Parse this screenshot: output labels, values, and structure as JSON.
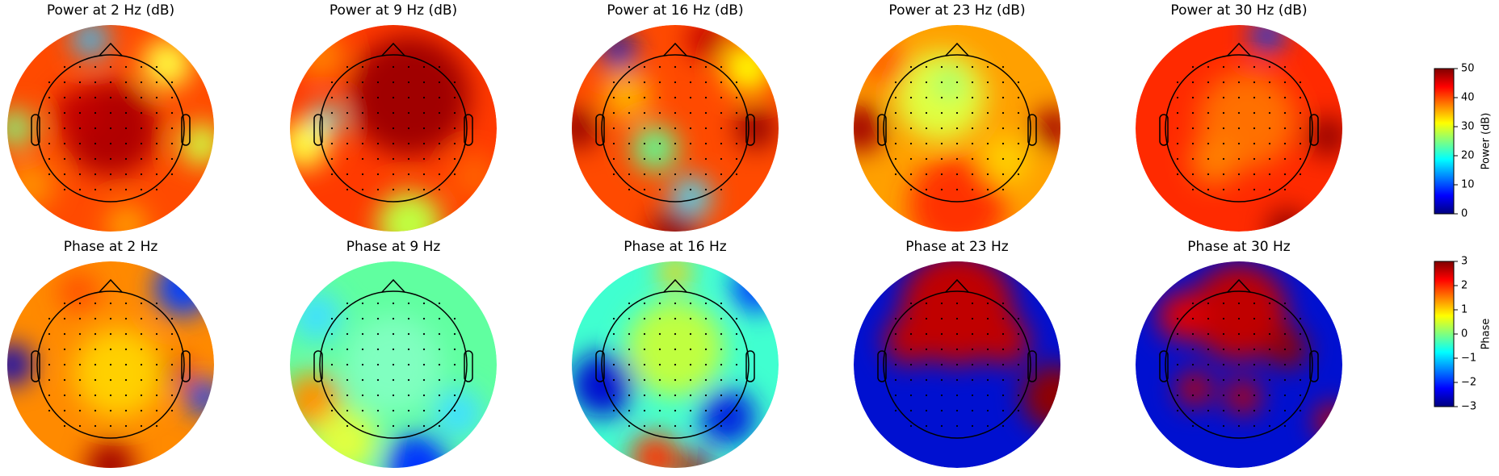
{
  "chart_data": {
    "type": "topomap",
    "colormap": "jet",
    "panels": [
      {
        "title": "Power at 2 Hz (dB)"
      },
      {
        "title": "Power at 9 Hz (dB)"
      },
      {
        "title": "Power at 16 Hz (dB)"
      },
      {
        "title": "Power at 23 Hz (dB)"
      },
      {
        "title": "Power at 30 Hz (dB)"
      },
      {
        "title": "Phase at 2 Hz"
      },
      {
        "title": "Phase at 9 Hz"
      },
      {
        "title": "Phase at 16 Hz"
      },
      {
        "title": "Phase at 23 Hz"
      },
      {
        "title": "Phase at 30 Hz"
      }
    ],
    "colorbars": [
      {
        "label": "Power (dB)",
        "ylim": [
          0,
          50
        ],
        "yticks": [
          0,
          10,
          20,
          30,
          40,
          50
        ]
      },
      {
        "label": "Phase",
        "ylim": [
          -3,
          3
        ],
        "yticks": [
          {
            "value": -3,
            "label": "−3"
          },
          {
            "value": -2,
            "label": "−2"
          },
          {
            "value": -1,
            "label": "−1"
          },
          0,
          1,
          2,
          3
        ]
      }
    ]
  }
}
